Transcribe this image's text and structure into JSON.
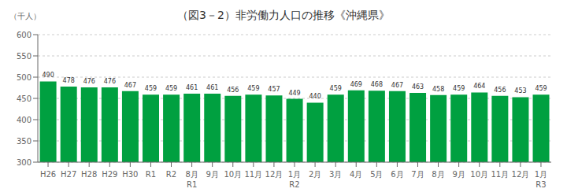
{
  "chart_data": {
    "type": "bar",
    "title": "（図3－2）非労働力人口の推移《沖縄県》",
    "y_label": "（千人）",
    "categories": [
      "H26",
      "H27",
      "H28",
      "H29",
      "H30",
      "R1",
      "R2",
      "8月",
      "9月",
      "10月",
      "11月",
      "12月",
      "1月",
      "2月",
      "3月",
      "4月",
      "5月",
      "6月",
      "7月",
      "8月",
      "9月",
      "10月",
      "11月",
      "12月",
      "1月"
    ],
    "values": [
      490,
      478,
      476,
      476,
      467,
      459,
      459,
      461,
      461,
      456,
      459,
      457,
      449,
      440,
      459,
      469,
      468,
      467,
      463,
      458,
      459,
      464,
      456,
      453,
      459
    ],
    "color": "#00a040",
    "ylim": [
      300,
      600
    ],
    "yticks": [
      300,
      350,
      400,
      450,
      500,
      550,
      600
    ],
    "grid": true,
    "data_labels": true,
    "annotations": [
      {
        "text": "R1",
        "x": 7
      },
      {
        "text": "R2",
        "x": 12
      },
      {
        "text": "R3",
        "x": 24
      }
    ]
  }
}
